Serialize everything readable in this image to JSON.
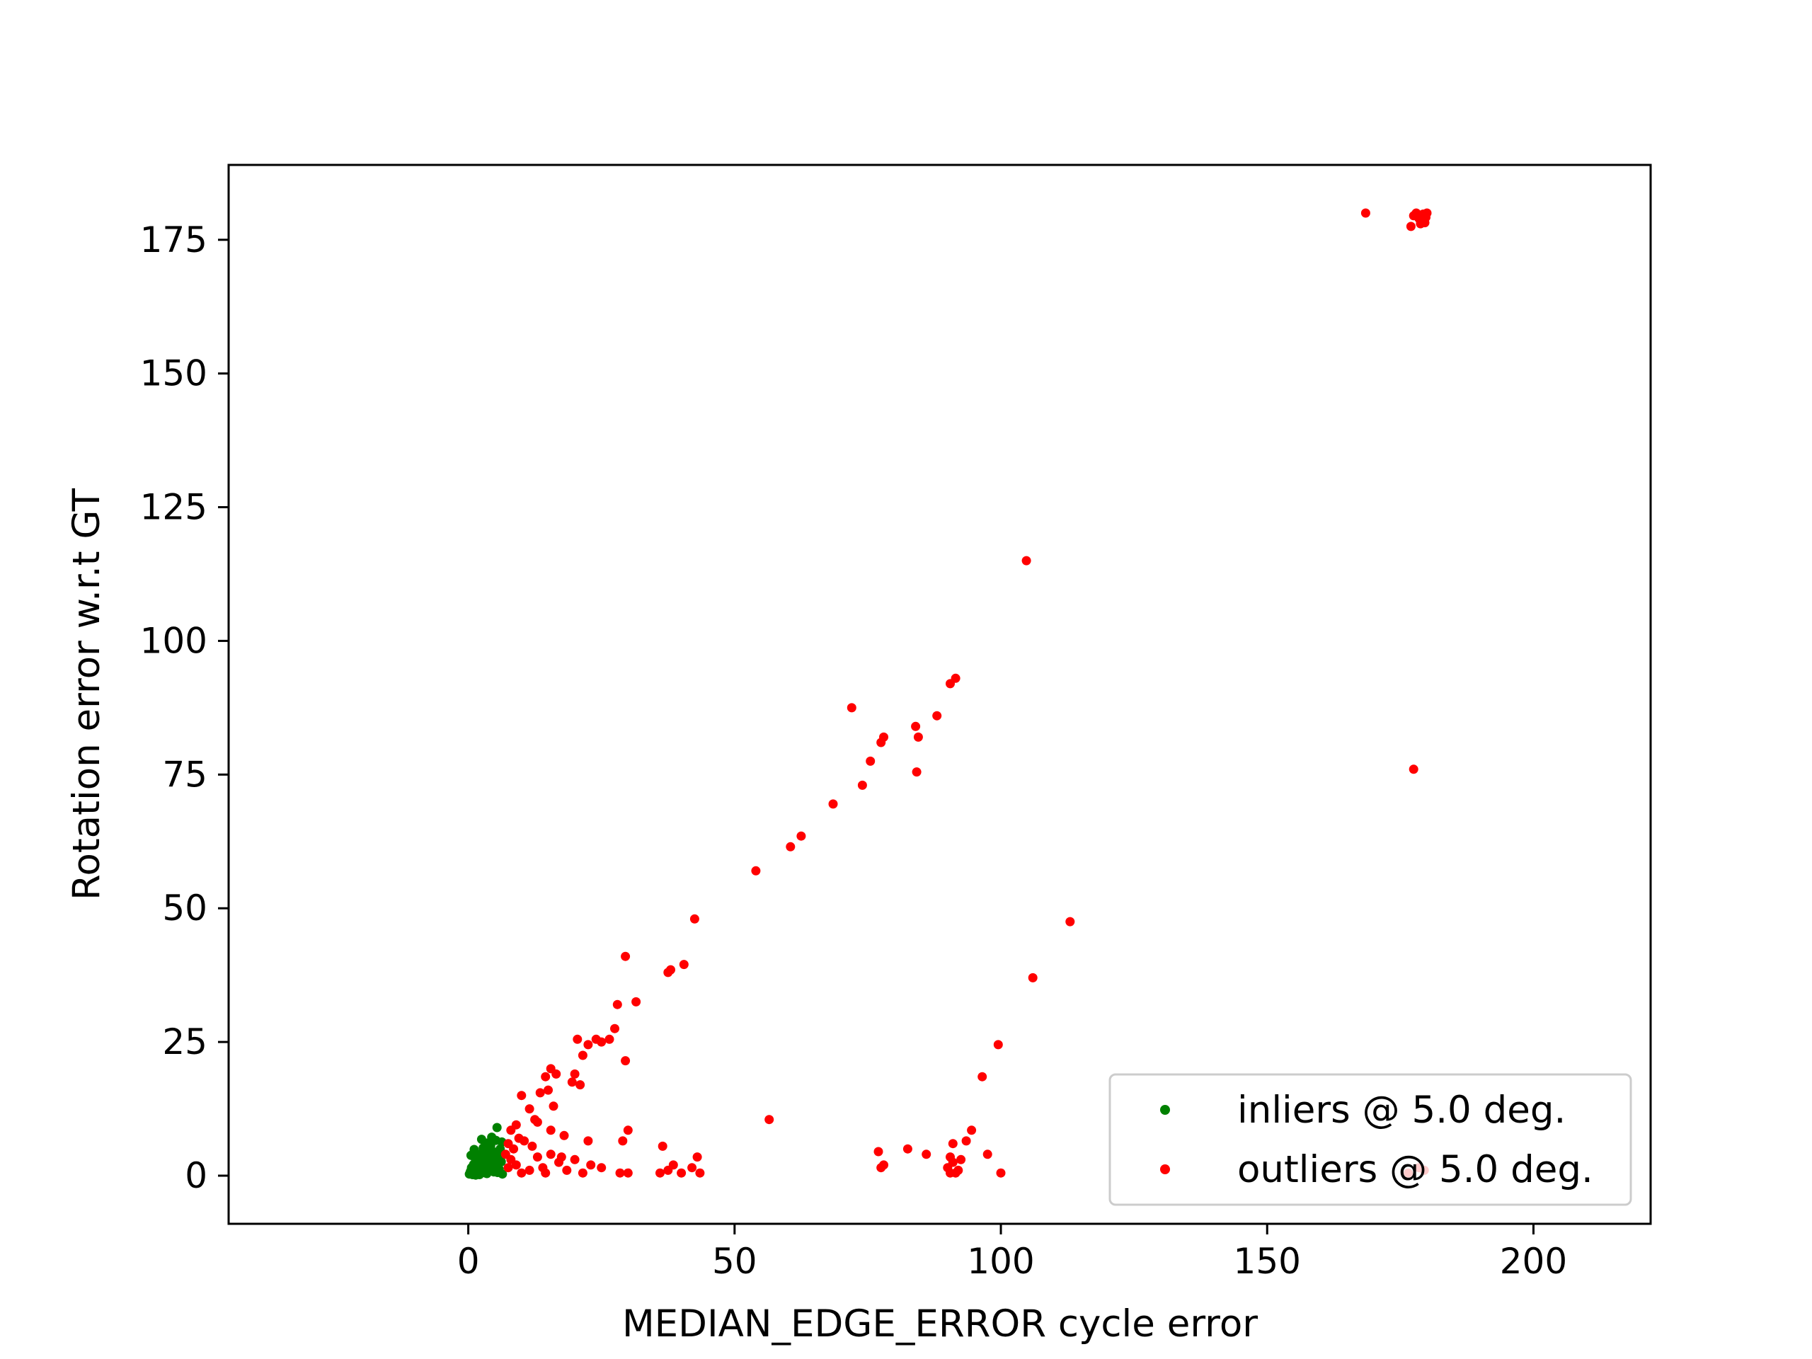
{
  "chart_data": {
    "type": "scatter",
    "title": "",
    "xlabel": "MEDIAN_EDGE_ERROR cycle error",
    "ylabel": "Rotation error w.r.t GT",
    "xlim": [
      -45,
      222
    ],
    "ylim": [
      -9,
      189
    ],
    "xticks": [
      0,
      50,
      100,
      150,
      200
    ],
    "yticks": [
      0,
      25,
      50,
      75,
      100,
      125,
      150,
      175
    ],
    "xtick_labels": [
      "0",
      "50",
      "100",
      "150",
      "200"
    ],
    "ytick_labels": [
      "0",
      "25",
      "50",
      "75",
      "100",
      "125",
      "150",
      "175"
    ],
    "grid": false,
    "legend_position": "lower-right",
    "series": [
      {
        "name": "inliers @ 5.0 deg.",
        "color": "#008000",
        "points": [
          [
            0.2,
            0.3
          ],
          [
            0.4,
            0.8
          ],
          [
            0.6,
            1.5
          ],
          [
            0.8,
            0.2
          ],
          [
            1.0,
            2.1
          ],
          [
            1.2,
            0.6
          ],
          [
            1.3,
            3.2
          ],
          [
            1.5,
            1.1
          ],
          [
            1.7,
            0.4
          ],
          [
            1.9,
            2.7
          ],
          [
            2.0,
            4.0
          ],
          [
            2.2,
            1.8
          ],
          [
            2.4,
            0.9
          ],
          [
            2.6,
            3.6
          ],
          [
            2.8,
            5.2
          ],
          [
            3.0,
            2.3
          ],
          [
            3.2,
            0.5
          ],
          [
            3.4,
            4.6
          ],
          [
            3.6,
            6.1
          ],
          [
            3.8,
            1.4
          ],
          [
            4.0,
            3.0
          ],
          [
            4.2,
            5.6
          ],
          [
            4.4,
            7.2
          ],
          [
            4.6,
            2.0
          ],
          [
            4.8,
            0.7
          ],
          [
            5.0,
            4.4
          ],
          [
            5.2,
            6.6
          ],
          [
            5.4,
            9.0
          ],
          [
            5.6,
            3.4
          ],
          [
            5.8,
            1.2
          ],
          [
            6.0,
            5.0
          ],
          [
            6.2,
            2.6
          ],
          [
            6.4,
            0.3
          ],
          [
            0.5,
            3.8
          ],
          [
            1.1,
            4.9
          ],
          [
            1.6,
            2.4
          ],
          [
            2.1,
            0.2
          ],
          [
            2.5,
            6.8
          ],
          [
            3.1,
            3.9
          ],
          [
            3.5,
            0.4
          ],
          [
            3.9,
            2.8
          ],
          [
            4.3,
            1.0
          ],
          [
            4.7,
            3.7
          ],
          [
            5.1,
            2.2
          ],
          [
            5.5,
            0.6
          ],
          [
            5.9,
            4.1
          ],
          [
            6.3,
            6.3
          ],
          [
            0.9,
            1.0
          ],
          [
            1.4,
            0.1
          ],
          [
            2.9,
            1.6
          ]
        ]
      },
      {
        "name": "outliers @ 5.0 deg.",
        "color": "#ff0000",
        "points": [
          [
            168.5,
            180.0
          ],
          [
            177.5,
            179.5
          ],
          [
            178.0,
            180.0
          ],
          [
            178.5,
            179.0
          ],
          [
            179.0,
            178.5
          ],
          [
            179.3,
            179.8
          ],
          [
            179.6,
            178.2
          ],
          [
            180.0,
            180.0
          ],
          [
            177.0,
            177.5
          ],
          [
            178.8,
            178.0
          ],
          [
            179.8,
            179.2
          ],
          [
            104.8,
            115.0
          ],
          [
            90.5,
            92.0
          ],
          [
            91.5,
            93.0
          ],
          [
            72.0,
            87.5
          ],
          [
            88.0,
            86.0
          ],
          [
            78.0,
            82.0
          ],
          [
            77.5,
            81.0
          ],
          [
            84.0,
            84.0
          ],
          [
            84.5,
            82.0
          ],
          [
            75.5,
            77.5
          ],
          [
            74.0,
            73.0
          ],
          [
            84.2,
            75.5
          ],
          [
            68.5,
            69.5
          ],
          [
            62.5,
            63.5
          ],
          [
            60.5,
            61.5
          ],
          [
            54.0,
            57.0
          ],
          [
            42.5,
            48.0
          ],
          [
            40.5,
            39.5
          ],
          [
            38.0,
            38.5
          ],
          [
            37.5,
            38.0
          ],
          [
            29.5,
            41.0
          ],
          [
            31.5,
            32.5
          ],
          [
            28.0,
            32.0
          ],
          [
            25.0,
            25.0
          ],
          [
            24.0,
            25.5
          ],
          [
            22.5,
            24.5
          ],
          [
            26.5,
            25.5
          ],
          [
            27.5,
            27.5
          ],
          [
            20.5,
            25.5
          ],
          [
            29.5,
            21.5
          ],
          [
            21.5,
            22.5
          ],
          [
            20.0,
            19.0
          ],
          [
            15.5,
            20.0
          ],
          [
            16.5,
            19.0
          ],
          [
            14.5,
            18.5
          ],
          [
            19.5,
            17.5
          ],
          [
            21.0,
            17.0
          ],
          [
            15.0,
            16.0
          ],
          [
            13.5,
            15.5
          ],
          [
            16.0,
            13.0
          ],
          [
            10.0,
            15.0
          ],
          [
            11.5,
            12.5
          ],
          [
            12.5,
            10.5
          ],
          [
            13.0,
            10.0
          ],
          [
            15.5,
            8.5
          ],
          [
            18.0,
            7.5
          ],
          [
            9.0,
            9.5
          ],
          [
            8.0,
            8.5
          ],
          [
            9.5,
            7.0
          ],
          [
            7.5,
            6.0
          ],
          [
            8.5,
            5.0
          ],
          [
            10.5,
            6.5
          ],
          [
            12.0,
            5.5
          ],
          [
            7.0,
            4.0
          ],
          [
            8.0,
            3.0
          ],
          [
            7.5,
            1.5
          ],
          [
            9.0,
            2.0
          ],
          [
            10.0,
            0.5
          ],
          [
            11.5,
            1.0
          ],
          [
            13.0,
            3.5
          ],
          [
            14.0,
            1.5
          ],
          [
            15.5,
            4.0
          ],
          [
            17.0,
            2.5
          ],
          [
            18.5,
            1.0
          ],
          [
            20.0,
            3.0
          ],
          [
            21.5,
            0.5
          ],
          [
            23.0,
            2.0
          ],
          [
            25.0,
            1.5
          ],
          [
            28.5,
            0.5
          ],
          [
            30.0,
            0.5
          ],
          [
            29.0,
            6.5
          ],
          [
            30.0,
            8.5
          ],
          [
            22.5,
            6.5
          ],
          [
            17.5,
            3.5
          ],
          [
            14.5,
            0.5
          ],
          [
            36.0,
            0.5
          ],
          [
            37.5,
            1.0
          ],
          [
            38.5,
            2.0
          ],
          [
            40.0,
            0.5
          ],
          [
            42.0,
            1.5
          ],
          [
            43.5,
            0.5
          ],
          [
            43.0,
            3.5
          ],
          [
            36.5,
            5.5
          ],
          [
            56.5,
            10.5
          ],
          [
            77.0,
            4.5
          ],
          [
            78.0,
            2.0
          ],
          [
            77.5,
            1.5
          ],
          [
            82.5,
            5.0
          ],
          [
            86.0,
            4.0
          ],
          [
            90.0,
            1.5
          ],
          [
            90.5,
            0.5
          ],
          [
            91.0,
            2.5
          ],
          [
            91.5,
            0.5
          ],
          [
            92.0,
            1.0
          ],
          [
            90.5,
            3.5
          ],
          [
            92.5,
            3.0
          ],
          [
            91.0,
            6.0
          ],
          [
            93.5,
            6.5
          ],
          [
            94.5,
            8.5
          ],
          [
            97.5,
            4.0
          ],
          [
            100.0,
            0.5
          ],
          [
            99.5,
            24.5
          ],
          [
            96.5,
            18.5
          ],
          [
            106.0,
            37.0
          ],
          [
            113.0,
            47.5
          ],
          [
            177.5,
            76.0
          ],
          [
            178.5,
            1.5
          ],
          [
            179.5,
            1.0
          ],
          [
            176.5,
            0.5
          ]
        ]
      }
    ]
  }
}
